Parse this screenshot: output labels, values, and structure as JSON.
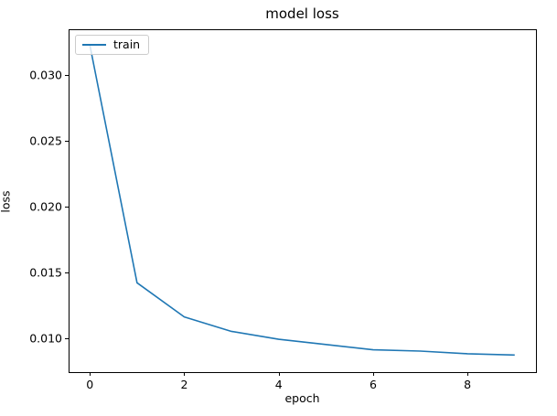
{
  "chart_data": {
    "type": "line",
    "title": "model loss",
    "xlabel": "epoch",
    "ylabel": "loss",
    "x": [
      0,
      1,
      2,
      3,
      4,
      5,
      6,
      7,
      8,
      9
    ],
    "series": [
      {
        "name": "train",
        "color": "#1f77b4",
        "values": [
          0.0323,
          0.0142,
          0.0116,
          0.0105,
          0.0099,
          0.0095,
          0.0091,
          0.009,
          0.0088,
          0.0087
        ]
      }
    ],
    "xlim": [
      -0.45,
      9.45
    ],
    "ylim": [
      0.0074,
      0.0335
    ],
    "xticks": {
      "values": [
        0,
        2,
        4,
        6,
        8
      ],
      "labels": [
        "0",
        "2",
        "4",
        "6",
        "8"
      ]
    },
    "yticks": {
      "values": [
        0.01,
        0.015,
        0.02,
        0.025,
        0.03
      ],
      "labels": [
        "0.010",
        "0.015",
        "0.020",
        "0.025",
        "0.030"
      ]
    },
    "grid": false,
    "legend_position": "upper left",
    "background_color": "#ffffff",
    "spine_color": "#000000"
  }
}
